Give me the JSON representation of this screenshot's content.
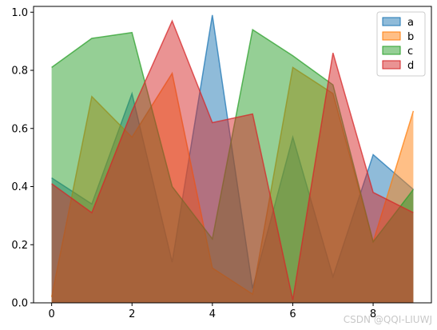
{
  "chart_data": {
    "type": "area",
    "x": [
      0,
      1,
      2,
      3,
      4,
      5,
      6,
      7,
      8,
      9
    ],
    "series": [
      {
        "name": "a",
        "color": "#1f77b4",
        "values": [
          0.43,
          0.34,
          0.72,
          0.14,
          0.99,
          0.05,
          0.57,
          0.09,
          0.51,
          0.39
        ]
      },
      {
        "name": "b",
        "color": "#ff7f0e",
        "values": [
          0.02,
          0.71,
          0.57,
          0.79,
          0.12,
          0.03,
          0.81,
          0.72,
          0.21,
          0.66
        ]
      },
      {
        "name": "c",
        "color": "#2ca02c",
        "values": [
          0.81,
          0.91,
          0.93,
          0.4,
          0.22,
          0.94,
          0.85,
          0.75,
          0.21,
          0.39
        ]
      },
      {
        "name": "d",
        "color": "#d62728",
        "values": [
          0.41,
          0.31,
          0.66,
          0.97,
          0.62,
          0.65,
          0.01,
          0.86,
          0.38,
          0.31
        ]
      }
    ],
    "xlim": [
      -0.45,
      9.45
    ],
    "ylim": [
      0,
      1.02
    ],
    "xticks": [
      0,
      2,
      4,
      6,
      8
    ],
    "xtick_labels": [
      "0",
      "2",
      "4",
      "6",
      "8"
    ],
    "yticks": [
      0.0,
      0.2,
      0.4,
      0.6,
      0.8,
      1.0
    ],
    "ytick_labels": [
      "0.0",
      "0.2",
      "0.4",
      "0.6",
      "0.8",
      "1.0"
    ],
    "alpha": 0.5,
    "legend_position": "top-right",
    "grid": false
  },
  "watermark": "CSDN @QQI-LIUWJ"
}
